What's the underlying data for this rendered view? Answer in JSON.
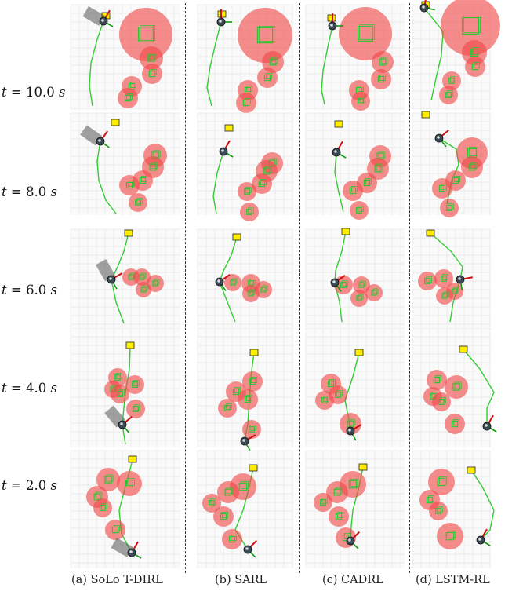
{
  "row_labels": [
    {
      "t": "t",
      "eq": " = ",
      "val": "10.0",
      "unit": "s"
    },
    {
      "t": "t",
      "eq": " = ",
      "val": "8.0",
      "unit": "s"
    },
    {
      "t": "t",
      "eq": " = ",
      "val": "6.0",
      "unit": "s"
    },
    {
      "t": "t",
      "eq": " = ",
      "val": "4.0",
      "unit": "s"
    },
    {
      "t": "t",
      "eq": " = ",
      "val": "2.0",
      "unit": "s"
    }
  ],
  "column_labels": [
    "(a) SoLo T-DIRL",
    "(b) SARL",
    "(c) CADRL",
    "(d) LSTM-RL"
  ],
  "colors": {
    "human_fill": "#f04848",
    "human_box": "#33c233",
    "trajectory": "#33cc33",
    "goal": "#ffee00",
    "robot": "#3a4a55",
    "heading": "#cc1111",
    "robot_axis": "#119911",
    "grid": "#e6e6e6",
    "separator": "#333333"
  }
}
